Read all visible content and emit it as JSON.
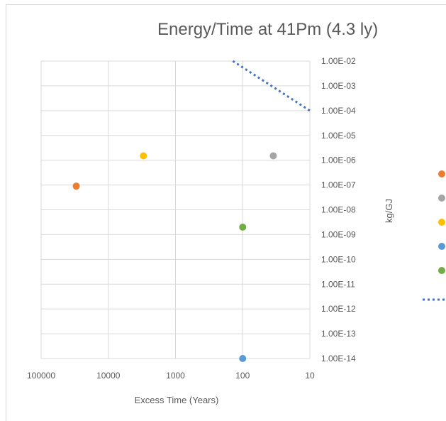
{
  "chart_data": {
    "type": "scatter",
    "title": "Energy/Time at 41Pm (4.3 ly)",
    "xlabel": "Excess Time (Years)",
    "ylabel": "kg/GJ",
    "x_scale": "log",
    "x_reversed": true,
    "xlim": [
      10,
      100000
    ],
    "x_ticks": [
      "100000",
      "10000",
      "1000",
      "100",
      "10"
    ],
    "y_scale": "log",
    "y_axis_position": "right",
    "ylim": [
      1e-14,
      0.01
    ],
    "y_ticks": [
      "1.00E-02",
      "1.00E-03",
      "1.00E-04",
      "1.00E-05",
      "1.00E-06",
      "1.00E-07",
      "1.00E-08",
      "1.00E-09",
      "1.00E-10",
      "1.00E-11",
      "1.00E-12",
      "1.00E-13",
      "1.00E-14"
    ],
    "grid": true,
    "legend_position": "right (entries cut off)",
    "series": [
      {
        "kind": "point",
        "color": "#ED7D31",
        "points": [
          {
            "x": 30000,
            "y": 9e-08
          }
        ]
      },
      {
        "kind": "point",
        "color": "#A5A5A5",
        "points": [
          {
            "x": 35,
            "y": 1.5e-06
          }
        ]
      },
      {
        "kind": "point",
        "color": "#FFC000",
        "points": [
          {
            "x": 3000,
            "y": 1.5e-06
          }
        ]
      },
      {
        "kind": "point",
        "color": "#5B9BD5",
        "points": [
          {
            "x": 100,
            "y": 1e-14
          }
        ]
      },
      {
        "kind": "point",
        "color": "#70AD47",
        "points": [
          {
            "x": 100,
            "y": 2e-09
          }
        ]
      },
      {
        "kind": "dotted-line",
        "color": "#4472C4",
        "points": [
          {
            "x": 140,
            "y": 0.01
          },
          {
            "x": 10,
            "y": 0.0001
          }
        ]
      }
    ]
  }
}
